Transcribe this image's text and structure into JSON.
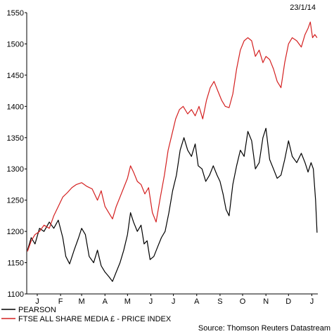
{
  "chart_data": {
    "type": "line",
    "date_label": "23/1/14",
    "source": "Source: Thomson Reuters Datastream",
    "ylim": [
      1100,
      1550
    ],
    "y_ticks": [
      1100,
      1150,
      1200,
      1250,
      1300,
      1350,
      1400,
      1450,
      1500,
      1550
    ],
    "x_ticks": [
      {
        "label": "J",
        "date": "2013-01-15"
      },
      {
        "label": "F",
        "date": "2013-02-15"
      },
      {
        "label": "M",
        "date": "2013-03-15"
      },
      {
        "label": "A",
        "date": "2013-04-15"
      },
      {
        "label": "M",
        "date": "2013-05-15"
      },
      {
        "label": "J",
        "date": "2013-06-15"
      },
      {
        "label": "J",
        "date": "2013-07-15"
      },
      {
        "label": "A",
        "date": "2013-08-15"
      },
      {
        "label": "S",
        "date": "2013-09-15"
      },
      {
        "label": "O",
        "date": "2013-10-15"
      },
      {
        "label": "N",
        "date": "2013-11-15"
      },
      {
        "label": "D",
        "date": "2013-12-15"
      },
      {
        "label": "J",
        "date": "2014-01-15"
      }
    ],
    "x_min": "2013-01-01",
    "x_max": "2014-01-23",
    "grid": false,
    "legend_position": "bottom-left",
    "series": [
      {
        "name": "PEARSON",
        "color": "#000000",
        "points": [
          [
            "2013-01-02",
            1170
          ],
          [
            "2013-01-07",
            1190
          ],
          [
            "2013-01-12",
            1180
          ],
          [
            "2013-01-18",
            1205
          ],
          [
            "2013-01-24",
            1200
          ],
          [
            "2013-01-31",
            1215
          ],
          [
            "2013-02-06",
            1205
          ],
          [
            "2013-02-12",
            1218
          ],
          [
            "2013-02-18",
            1190
          ],
          [
            "2013-02-22",
            1160
          ],
          [
            "2013-02-27",
            1148
          ],
          [
            "2013-03-05",
            1170
          ],
          [
            "2013-03-11",
            1190
          ],
          [
            "2013-03-15",
            1205
          ],
          [
            "2013-03-20",
            1195
          ],
          [
            "2013-03-25",
            1160
          ],
          [
            "2013-03-31",
            1150
          ],
          [
            "2013-04-05",
            1170
          ],
          [
            "2013-04-10",
            1145
          ],
          [
            "2013-04-15",
            1135
          ],
          [
            "2013-04-20",
            1128
          ],
          [
            "2013-04-25",
            1120
          ],
          [
            "2013-04-30",
            1135
          ],
          [
            "2013-05-05",
            1150
          ],
          [
            "2013-05-10",
            1170
          ],
          [
            "2013-05-15",
            1195
          ],
          [
            "2013-05-19",
            1230
          ],
          [
            "2013-05-23",
            1215
          ],
          [
            "2013-05-28",
            1200
          ],
          [
            "2013-06-02",
            1210
          ],
          [
            "2013-06-06",
            1180
          ],
          [
            "2013-06-10",
            1185
          ],
          [
            "2013-06-14",
            1155
          ],
          [
            "2013-06-19",
            1160
          ],
          [
            "2013-06-24",
            1175
          ],
          [
            "2013-06-29",
            1190
          ],
          [
            "2013-07-04",
            1200
          ],
          [
            "2013-07-09",
            1230
          ],
          [
            "2013-07-14",
            1265
          ],
          [
            "2013-07-19",
            1290
          ],
          [
            "2013-07-24",
            1330
          ],
          [
            "2013-07-29",
            1350
          ],
          [
            "2013-08-03",
            1330
          ],
          [
            "2013-08-08",
            1320
          ],
          [
            "2013-08-13",
            1340
          ],
          [
            "2013-08-17",
            1305
          ],
          [
            "2013-08-22",
            1300
          ],
          [
            "2013-08-27",
            1280
          ],
          [
            "2013-09-01",
            1290
          ],
          [
            "2013-09-06",
            1305
          ],
          [
            "2013-09-11",
            1290
          ],
          [
            "2013-09-15",
            1280
          ],
          [
            "2013-09-19",
            1260
          ],
          [
            "2013-09-23",
            1235
          ],
          [
            "2013-09-27",
            1225
          ],
          [
            "2013-10-02",
            1275
          ],
          [
            "2013-10-07",
            1305
          ],
          [
            "2013-10-12",
            1330
          ],
          [
            "2013-10-17",
            1320
          ],
          [
            "2013-10-22",
            1360
          ],
          [
            "2013-10-27",
            1345
          ],
          [
            "2013-11-01",
            1300
          ],
          [
            "2013-11-06",
            1310
          ],
          [
            "2013-11-11",
            1350
          ],
          [
            "2013-11-15",
            1365
          ],
          [
            "2013-11-20",
            1315
          ],
          [
            "2013-11-25",
            1300
          ],
          [
            "2013-11-30",
            1285
          ],
          [
            "2013-12-05",
            1290
          ],
          [
            "2013-12-10",
            1315
          ],
          [
            "2013-12-15",
            1345
          ],
          [
            "2013-12-20",
            1320
          ],
          [
            "2013-12-26",
            1310
          ],
          [
            "2014-01-01",
            1325
          ],
          [
            "2014-01-06",
            1310
          ],
          [
            "2014-01-10",
            1295
          ],
          [
            "2014-01-14",
            1310
          ],
          [
            "2014-01-17",
            1300
          ],
          [
            "2014-01-20",
            1250
          ],
          [
            "2014-01-22",
            1198
          ]
        ]
      },
      {
        "name": "FTSE ALL SHARE MEDIA £ - PRICE INDEX",
        "color": "#d42020",
        "points": [
          [
            "2013-01-02",
            1168
          ],
          [
            "2013-01-07",
            1185
          ],
          [
            "2013-01-12",
            1195
          ],
          [
            "2013-01-18",
            1200
          ],
          [
            "2013-01-24",
            1210
          ],
          [
            "2013-01-31",
            1205
          ],
          [
            "2013-02-06",
            1225
          ],
          [
            "2013-02-12",
            1240
          ],
          [
            "2013-02-18",
            1255
          ],
          [
            "2013-02-24",
            1262
          ],
          [
            "2013-03-02",
            1270
          ],
          [
            "2013-03-08",
            1275
          ],
          [
            "2013-03-15",
            1278
          ],
          [
            "2013-03-22",
            1272
          ],
          [
            "2013-03-29",
            1268
          ],
          [
            "2013-04-05",
            1250
          ],
          [
            "2013-04-10",
            1265
          ],
          [
            "2013-04-15",
            1240
          ],
          [
            "2013-04-20",
            1230
          ],
          [
            "2013-04-25",
            1220
          ],
          [
            "2013-04-30",
            1240
          ],
          [
            "2013-05-05",
            1255
          ],
          [
            "2013-05-10",
            1270
          ],
          [
            "2013-05-15",
            1285
          ],
          [
            "2013-05-19",
            1305
          ],
          [
            "2013-05-23",
            1295
          ],
          [
            "2013-05-28",
            1280
          ],
          [
            "2013-06-02",
            1275
          ],
          [
            "2013-06-07",
            1260
          ],
          [
            "2013-06-12",
            1270
          ],
          [
            "2013-06-17",
            1230
          ],
          [
            "2013-06-22",
            1215
          ],
          [
            "2013-06-27",
            1250
          ],
          [
            "2013-07-03",
            1290
          ],
          [
            "2013-07-08",
            1330
          ],
          [
            "2013-07-13",
            1355
          ],
          [
            "2013-07-18",
            1380
          ],
          [
            "2013-07-23",
            1395
          ],
          [
            "2013-07-28",
            1400
          ],
          [
            "2013-08-03",
            1388
          ],
          [
            "2013-08-08",
            1395
          ],
          [
            "2013-08-13",
            1385
          ],
          [
            "2013-08-18",
            1400
          ],
          [
            "2013-08-23",
            1380
          ],
          [
            "2013-08-28",
            1410
          ],
          [
            "2013-09-02",
            1430
          ],
          [
            "2013-09-07",
            1440
          ],
          [
            "2013-09-12",
            1425
          ],
          [
            "2013-09-17",
            1410
          ],
          [
            "2013-09-22",
            1400
          ],
          [
            "2013-09-27",
            1398
          ],
          [
            "2013-10-02",
            1420
          ],
          [
            "2013-10-07",
            1460
          ],
          [
            "2013-10-12",
            1490
          ],
          [
            "2013-10-17",
            1505
          ],
          [
            "2013-10-22",
            1510
          ],
          [
            "2013-10-27",
            1505
          ],
          [
            "2013-11-01",
            1480
          ],
          [
            "2013-11-06",
            1490
          ],
          [
            "2013-11-11",
            1470
          ],
          [
            "2013-11-15",
            1480
          ],
          [
            "2013-11-20",
            1475
          ],
          [
            "2013-11-25",
            1460
          ],
          [
            "2013-11-30",
            1440
          ],
          [
            "2013-12-05",
            1430
          ],
          [
            "2013-12-10",
            1470
          ],
          [
            "2013-12-15",
            1500
          ],
          [
            "2013-12-20",
            1510
          ],
          [
            "2013-12-26",
            1505
          ],
          [
            "2014-01-01",
            1495
          ],
          [
            "2014-01-06",
            1515
          ],
          [
            "2014-01-10",
            1525
          ],
          [
            "2014-01-13",
            1535
          ],
          [
            "2014-01-16",
            1510
          ],
          [
            "2014-01-19",
            1515
          ],
          [
            "2014-01-22",
            1510
          ]
        ]
      }
    ]
  }
}
